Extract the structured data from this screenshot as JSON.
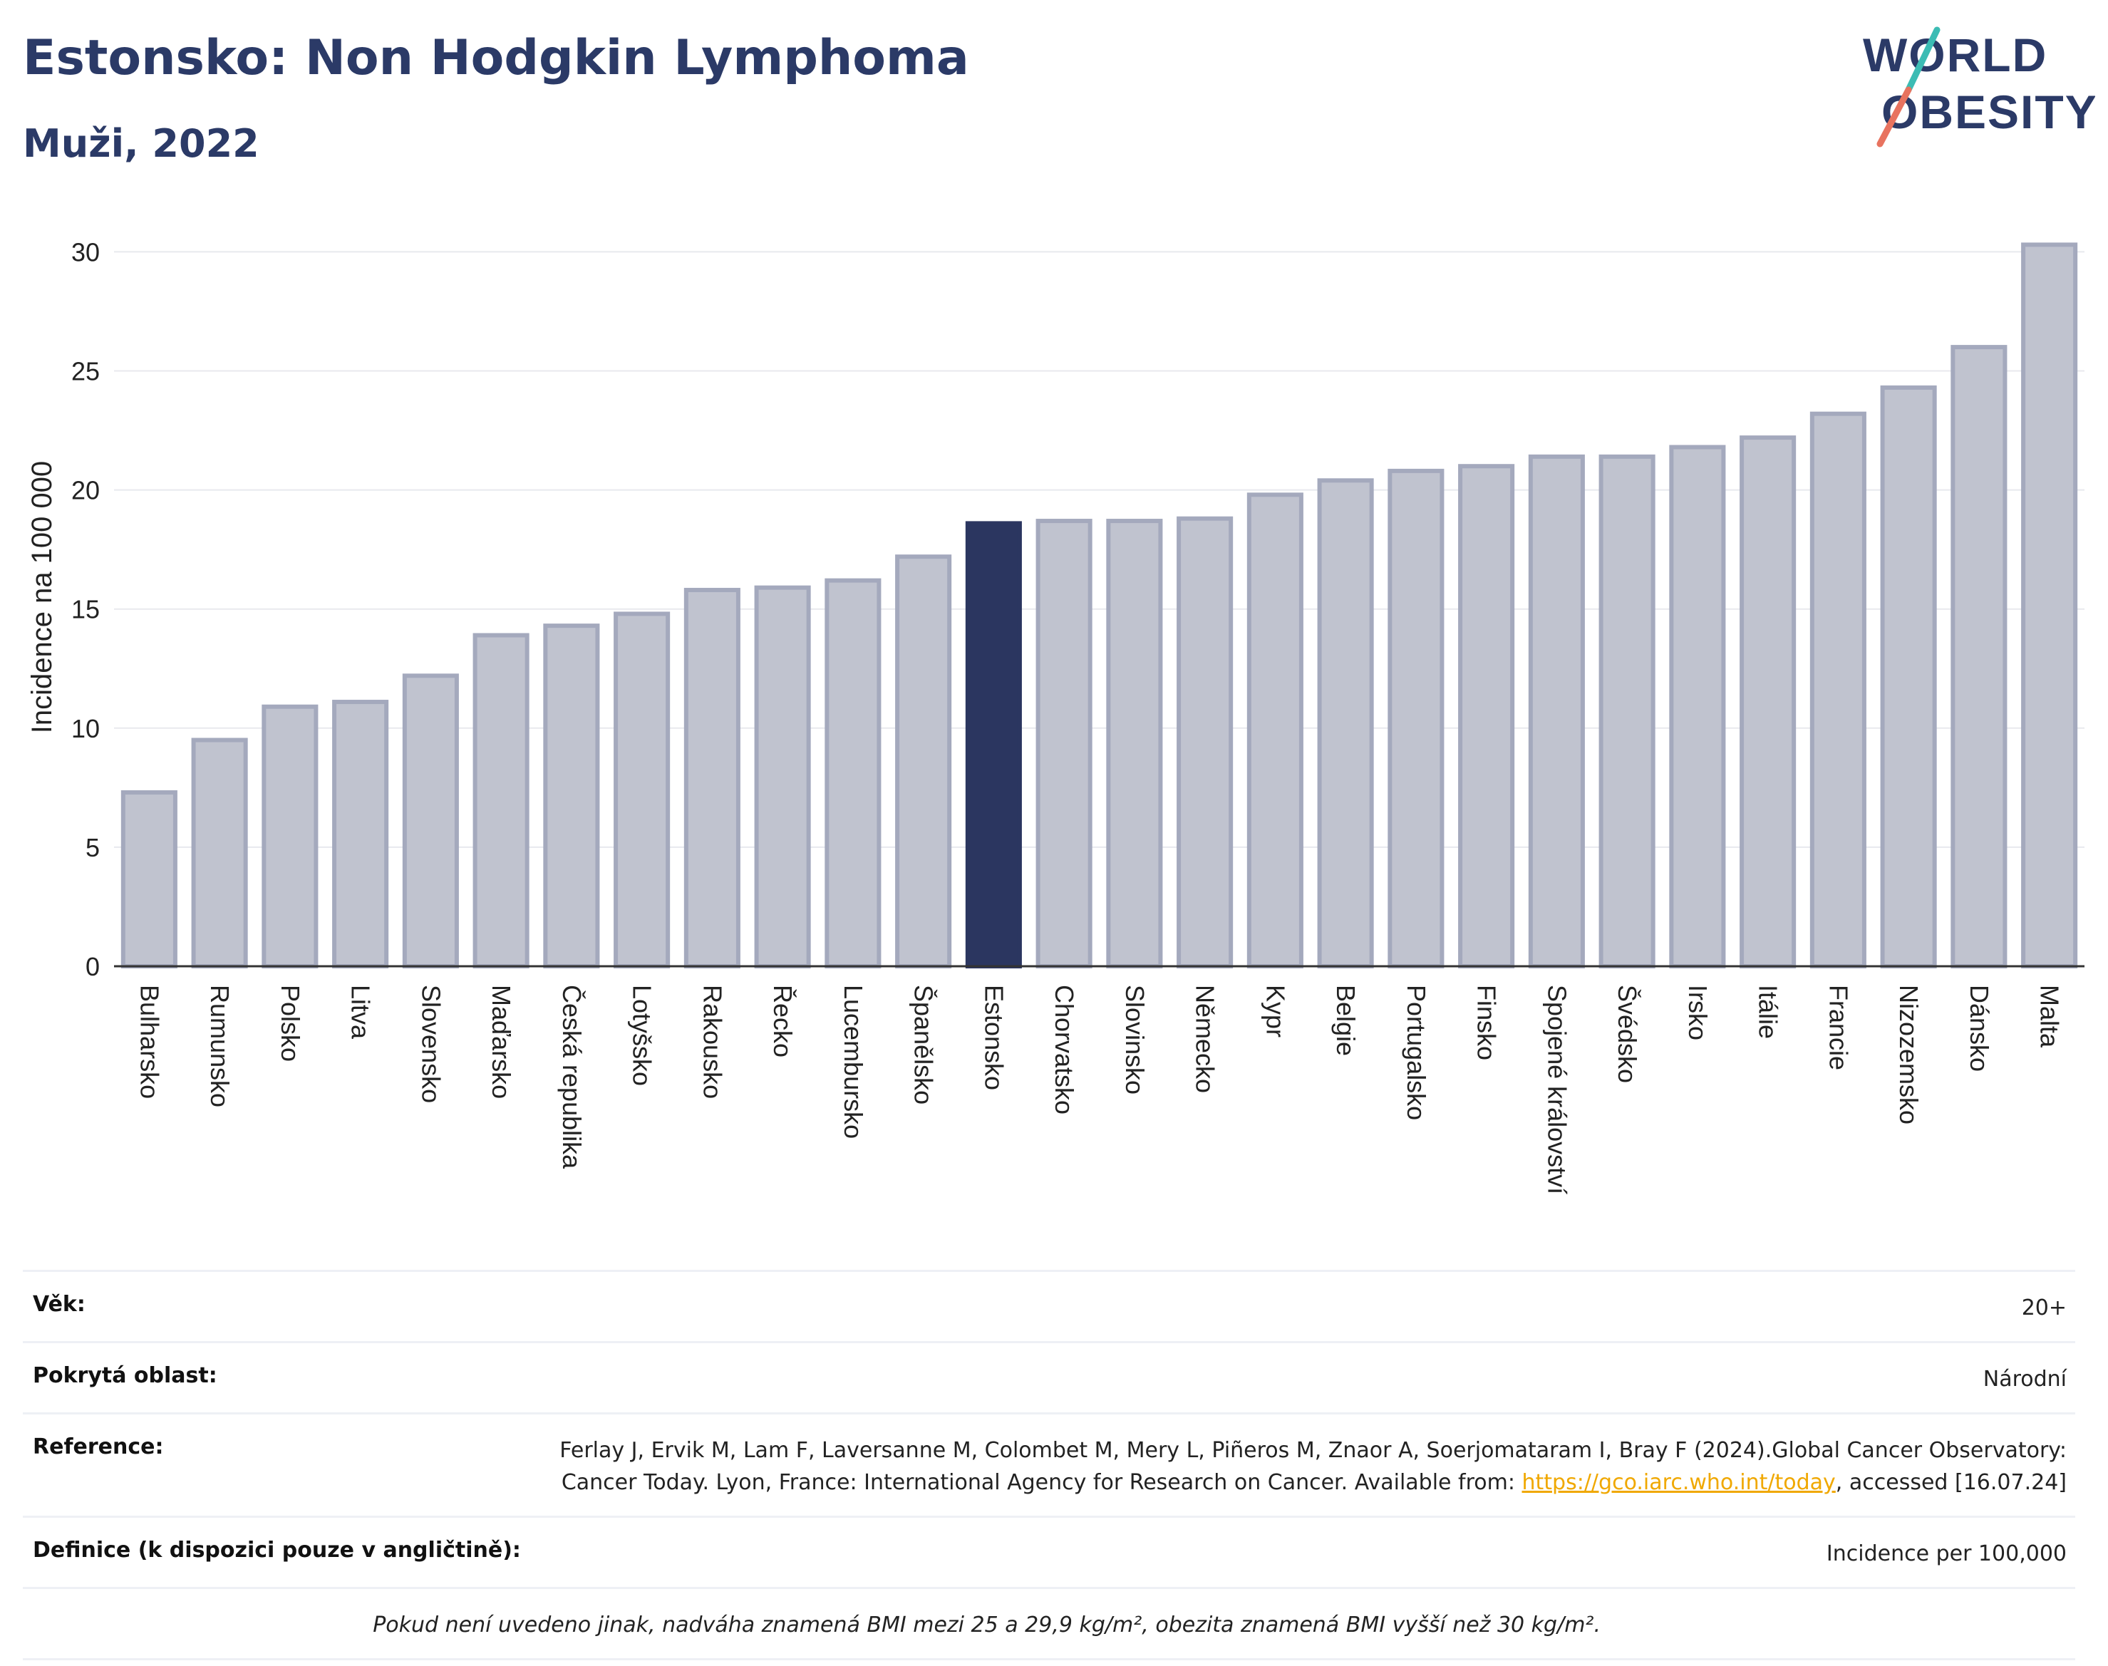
{
  "title": "Estonsko: Non Hodgkin Lymphoma",
  "subtitle": "Muži, 2022",
  "logo": {
    "line1": "WORLD",
    "line2": "OBESITY"
  },
  "colors": {
    "bar_default": "#c0c3cf",
    "bar_default_stroke": "#a4a9bd",
    "bar_highlight": "#2b3660",
    "title": "#2b3a67",
    "link": "#f0a800",
    "grid": "#e8e9ee"
  },
  "chart_data": {
    "type": "bar",
    "title": "Estonsko: Non Hodgkin Lymphoma",
    "subtitle": "Muži, 2022",
    "xlabel": "",
    "ylabel": "Incidence na 100 000",
    "ylim": [
      0,
      31
    ],
    "yticks": [
      0,
      5,
      10,
      15,
      20,
      25,
      30
    ],
    "grid": true,
    "highlight": "Estonsko",
    "categories": [
      "Bulharsko",
      "Rumunsko",
      "Polsko",
      "Litva",
      "Slovensko",
      "Maďarsko",
      "Česká republika",
      "Lotyšsko",
      "Rakousko",
      "Řecko",
      "Lucembursko",
      "Španělsko",
      "Estonsko",
      "Chorvatsko",
      "Slovinsko",
      "Německo",
      "Kypr",
      "Belgie",
      "Portugalsko",
      "Finsko",
      "Spojené království",
      "Švédsko",
      "Irsko",
      "Itálie",
      "Francie",
      "Nizozemsko",
      "Dánsko",
      "Malta"
    ],
    "values": [
      7.3,
      9.5,
      10.9,
      11.1,
      12.2,
      13.9,
      14.3,
      14.8,
      15.8,
      15.9,
      16.2,
      17.2,
      18.6,
      18.7,
      18.7,
      18.8,
      19.8,
      20.4,
      20.8,
      21.0,
      21.4,
      21.4,
      21.8,
      22.2,
      23.2,
      24.3,
      26.0,
      30.3
    ]
  },
  "info": {
    "age_label": "Věk:",
    "age_value": "20+",
    "area_label": "Pokrytá oblast:",
    "area_value": "Národní",
    "reference_label": "Reference:",
    "reference_text_1": "Ferlay J, Ervik M, Lam F, Laversanne M, Colombet M, Mery L, Piñeros M, Znaor A, Soerjomataram I, Bray F (2024).Global Cancer Observatory: Cancer Today. Lyon, France: International Agency for Research on Cancer. Available from: ",
    "reference_link": "https://gco.iarc.who.int/today",
    "reference_text_2": ", accessed [16.07.24]",
    "definition_label": "Definice (k dispozici pouze v angličtině):",
    "definition_value": "Incidence per 100,000",
    "note": "Pokud není uvedeno jinak, nadváha znamená BMI mezi 25 a 29,9 kg/m², obezita znamená BMI vyšší než 30 kg/m²."
  }
}
